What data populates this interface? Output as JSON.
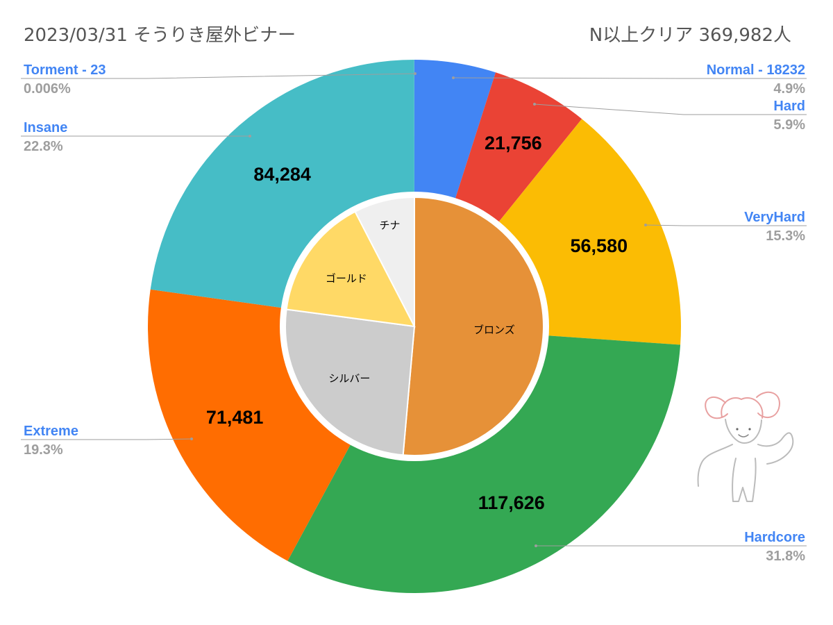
{
  "header": {
    "title": "2023/03/31 そうりき屋外ビナー",
    "subtitle": "N以上クリア  369,982人"
  },
  "chart_data": [
    {
      "type": "pie",
      "ring": "outer",
      "series": [
        {
          "name": "Normal - 18232",
          "value": 18232,
          "percent_label": "4.9%",
          "color": "#4285f4",
          "value_label": ""
        },
        {
          "name": "Hard",
          "value": 21756,
          "percent_label": "5.9%",
          "color": "#ea4335",
          "value_label": "21,756"
        },
        {
          "name": "VeryHard",
          "value": 56580,
          "percent_label": "15.3%",
          "color": "#fbbc04",
          "value_label": "56,580"
        },
        {
          "name": "Hardcore",
          "value": 117626,
          "percent_label": "31.8%",
          "color": "#34a853",
          "value_label": "117,626"
        },
        {
          "name": "Extreme",
          "value": 71481,
          "percent_label": "19.3%",
          "color": "#ff6d01",
          "value_label": "71,481"
        },
        {
          "name": "Insane",
          "value": 84284,
          "percent_label": "22.8%",
          "color": "#46bdc6",
          "value_label": "84,284"
        },
        {
          "name": "Torment  - 23",
          "value": 23,
          "percent_label": "0.006%",
          "color": "#7baaf7",
          "value_label": ""
        }
      ]
    },
    {
      "type": "pie",
      "ring": "inner",
      "series": [
        {
          "name": "ブロンズ",
          "value": 51.4,
          "color": "#e69138"
        },
        {
          "name": "シルバー",
          "value": 25.7,
          "color": "#cccccc"
        },
        {
          "name": "ゴールド",
          "value": 15.3,
          "color": "#ffd966"
        },
        {
          "name": "チナ",
          "value": 7.6,
          "color": "#efefef"
        }
      ]
    }
  ]
}
